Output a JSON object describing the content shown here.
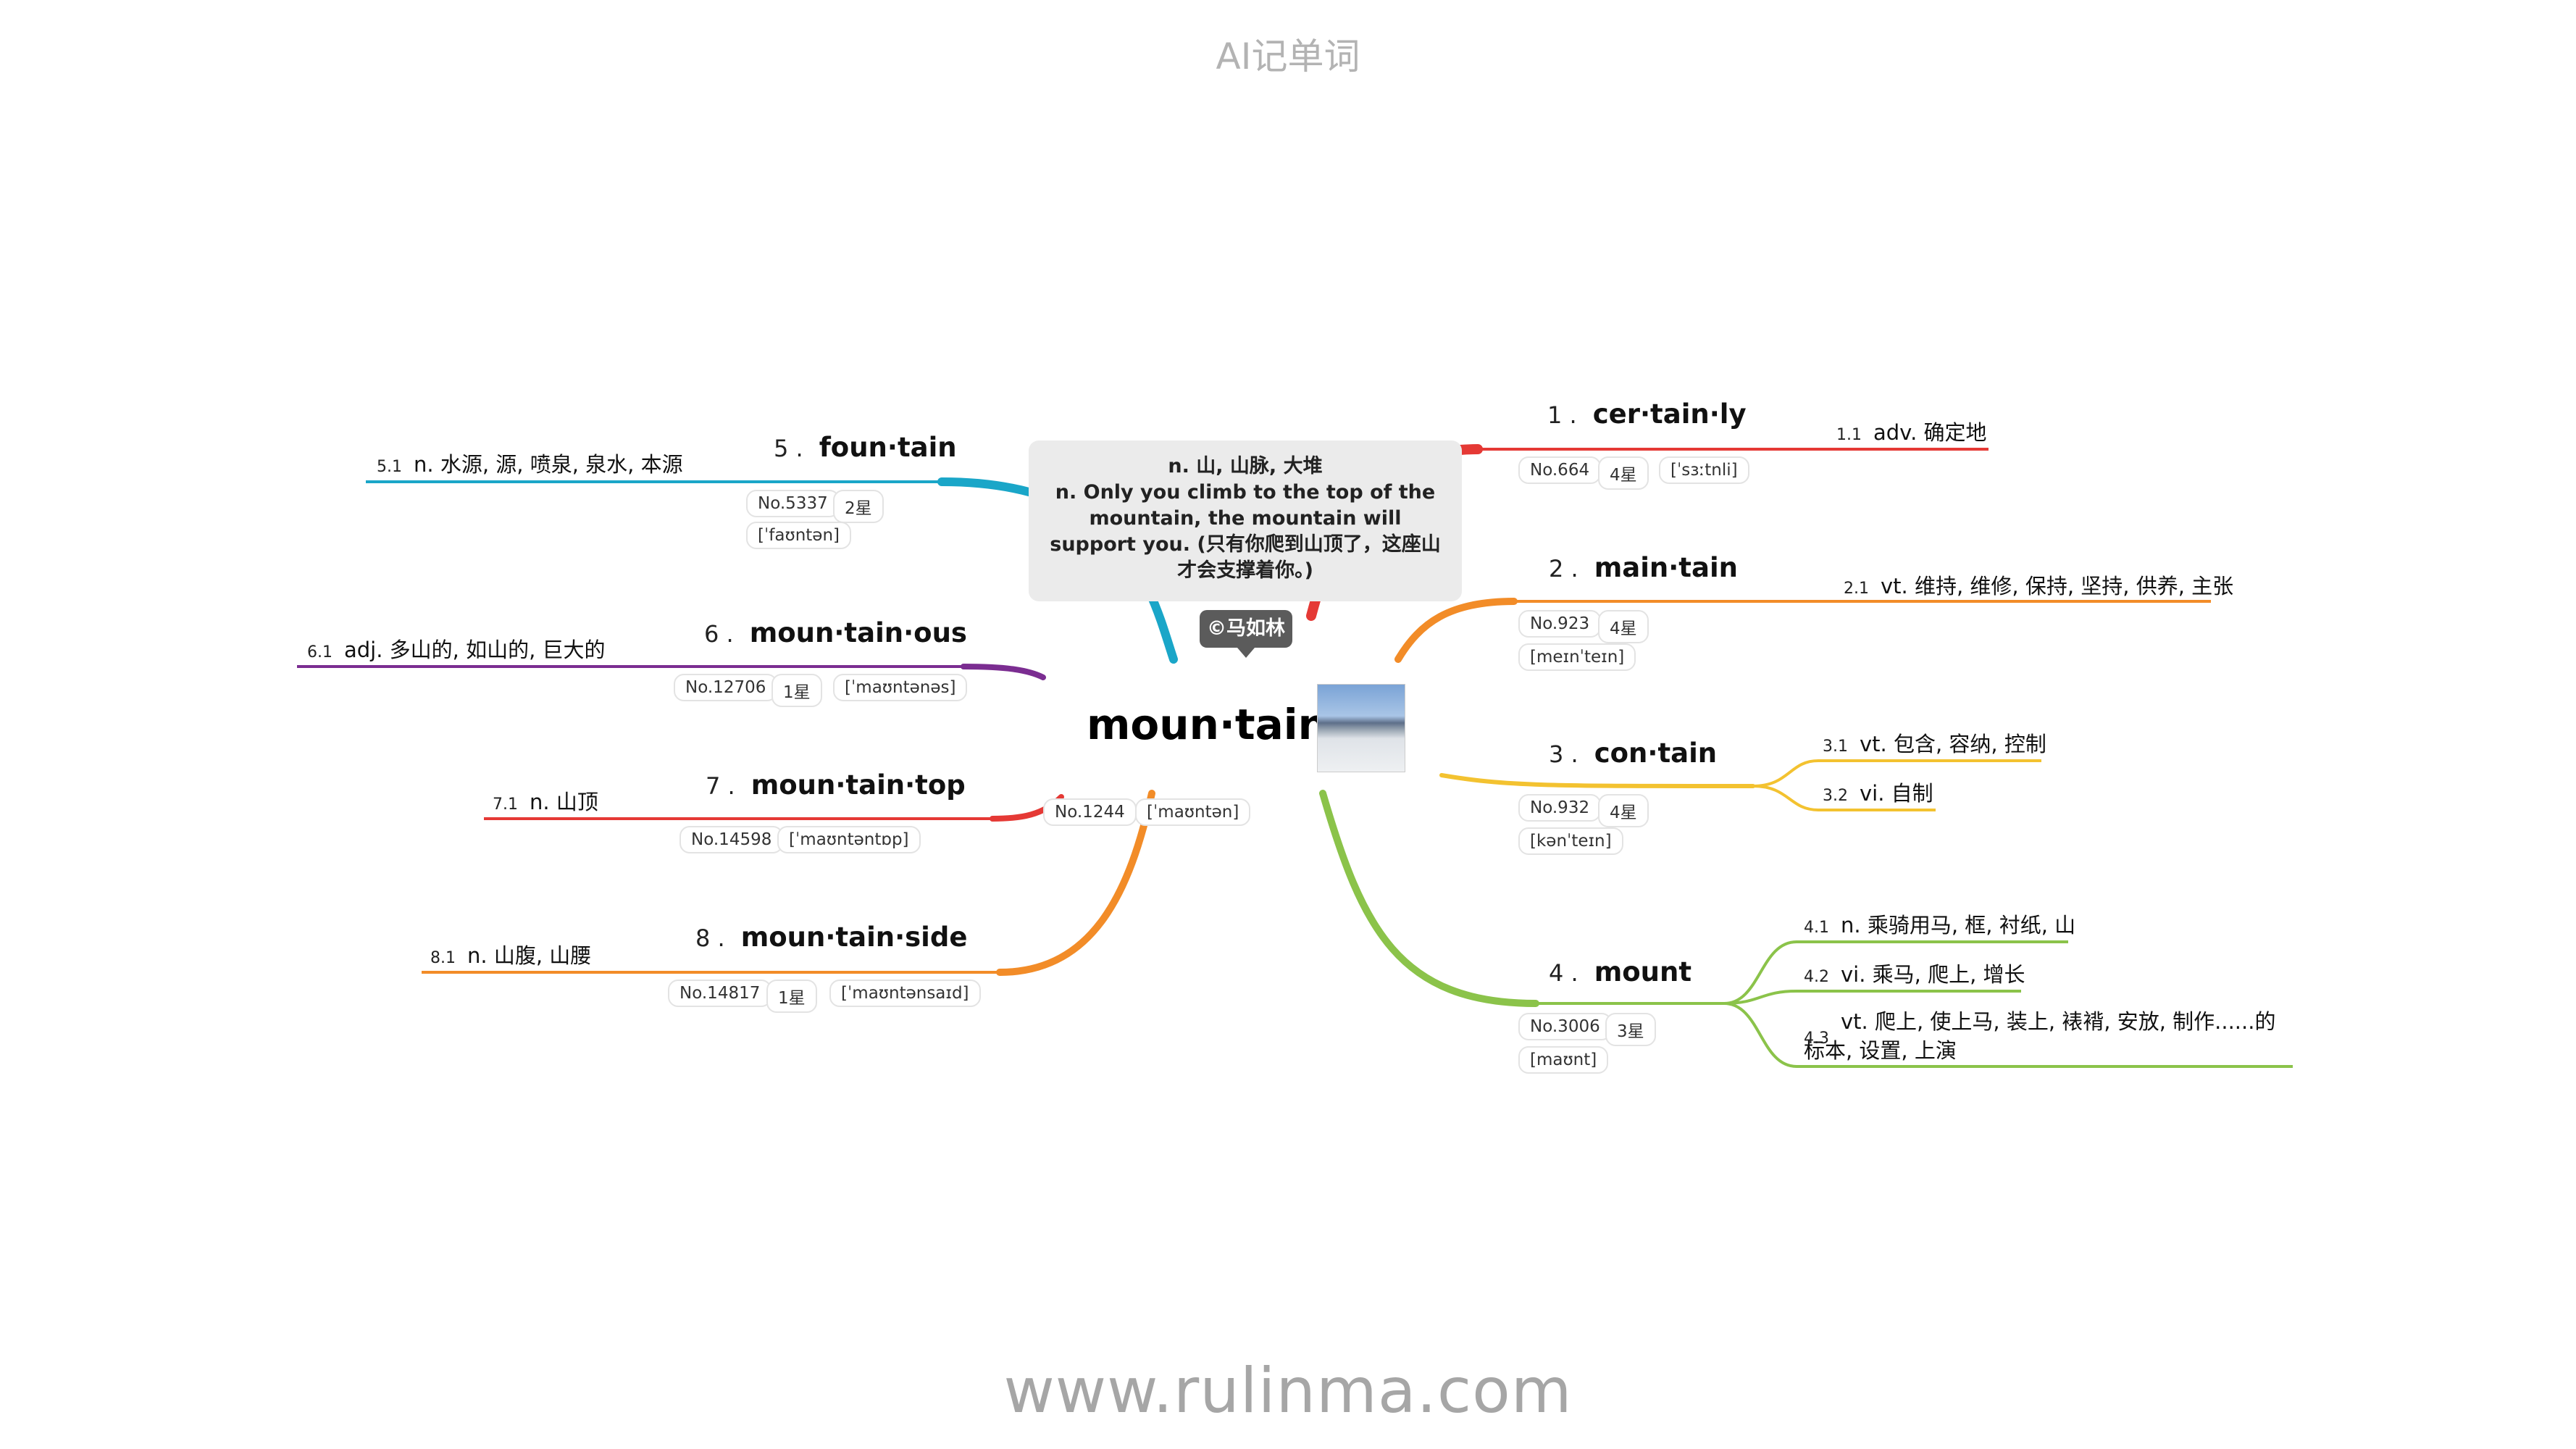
{
  "header": "AI记单词",
  "footer": "www.rulinma.com",
  "center": {
    "word": "moun·tain",
    "no": "No.1244",
    "phonetic": "[ˈmaʊntən]",
    "meaning": "n. 山, 山脉, 大堆",
    "example": "n. Only you climb to the top of the mountain, the mountain will support you. (只有你爬到山顶了，这座山才会支撑着你。)",
    "author": "©马如林",
    "photo_icon": "mountain-photo"
  },
  "branches": [
    {
      "num": "1 .",
      "word": "cer·tain·ly",
      "no": "No.664",
      "stars": "4星",
      "phonetic": "[ˈsɜːtnli]",
      "color": "#e53935",
      "defs": [
        {
          "sub": "1.1",
          "text": "adv. 确定地"
        }
      ]
    },
    {
      "num": "2 .",
      "word": "main·tain",
      "no": "No.923",
      "stars": "4星",
      "phonetic": "[meɪnˈteɪn]",
      "color": "#f28c28",
      "defs": [
        {
          "sub": "2.1",
          "text": "vt. 维持, 维修, 保持, 坚持, 供养, 主张"
        }
      ]
    },
    {
      "num": "3 .",
      "word": "con·tain",
      "no": "No.932",
      "stars": "4星",
      "phonetic": "[kənˈteɪn]",
      "color": "#f3c230",
      "defs": [
        {
          "sub": "3.1",
          "text": "vt. 包含, 容纳, 控制"
        },
        {
          "sub": "3.2",
          "text": "vi. 自制"
        }
      ]
    },
    {
      "num": "4 .",
      "word": "mount",
      "no": "No.3006",
      "stars": "3星",
      "phonetic": "[maʊnt]",
      "color": "#8bc34a",
      "defs": [
        {
          "sub": "4.1",
          "text": "n. 乘骑用马, 框, 衬纸, 山"
        },
        {
          "sub": "4.2",
          "text": "vi. 乘马, 爬上, 增长"
        },
        {
          "sub": "4.3",
          "text": "vt. 爬上, 使上马, 装上, 裱褙, 安放, 制作......的标本, 设置, 上演"
        }
      ]
    },
    {
      "num": "5 .",
      "word": "foun·tain",
      "no": "No.5337",
      "stars": "2星",
      "phonetic": "[ˈfaʊntən]",
      "color": "#1aa6c8",
      "defs": [
        {
          "sub": "5.1",
          "text": "n. 水源, 源, 喷泉, 泉水, 本源"
        }
      ]
    },
    {
      "num": "6 .",
      "word": "moun·tain·ous",
      "no": "No.12706",
      "stars": "1星",
      "phonetic": "[ˈmaʊntənəs]",
      "color": "#7b2d91",
      "defs": [
        {
          "sub": "6.1",
          "text": "adj. 多山的, 如山的, 巨大的"
        }
      ]
    },
    {
      "num": "7 .",
      "word": "moun·tain·top",
      "no": "No.14598",
      "stars": "",
      "phonetic": "[ˈmaʊntəntɒp]",
      "color": "#e53935",
      "defs": [
        {
          "sub": "7.1",
          "text": "n. 山顶"
        }
      ]
    },
    {
      "num": "8 .",
      "word": "moun·tain·side",
      "no": "No.14817",
      "stars": "1星",
      "phonetic": "[ˈmaʊntənsaɪd]",
      "color": "#f28c28",
      "defs": [
        {
          "sub": "8.1",
          "text": "n. 山腹, 山腰"
        }
      ]
    }
  ]
}
